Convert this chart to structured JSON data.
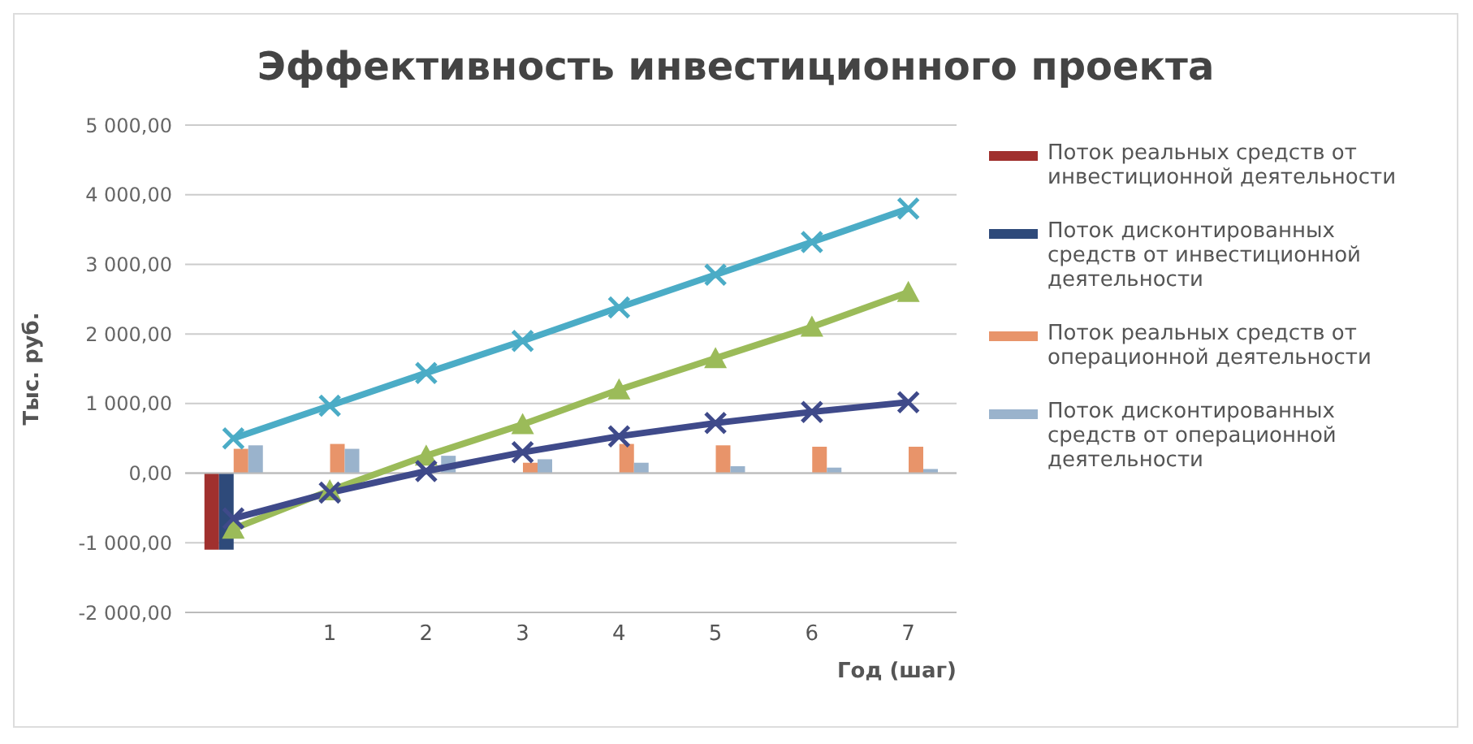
{
  "chart_data": {
    "type": "bar",
    "title": "Эффективность инвестиционного проекта",
    "xlabel": "Год (шаг)",
    "ylabel": "Тыс. руб.",
    "categories": [
      null,
      "1",
      "2",
      "3",
      "4",
      "5",
      "6",
      "7"
    ],
    "series": [
      {
        "name": "Поток реальных средств от инвестиционной деятельности",
        "color": "#a0302e",
        "values": [
          -1100,
          0,
          0,
          0,
          0,
          0,
          0,
          0
        ]
      },
      {
        "name": "Поток дисконтированных средств от инвестиционной деятельности",
        "color": "#2e4a7a",
        "values": [
          -1100,
          0,
          0,
          0,
          0,
          0,
          0,
          0
        ]
      },
      {
        "name": "Поток реальных средств от операционной деятельности",
        "color": "#e8946a",
        "values": [
          350,
          420,
          null,
          150,
          420,
          400,
          380,
          380
        ]
      },
      {
        "name": "Поток дисконтированных средств от операционной деятельности",
        "color": "#9ab3cc",
        "values": [
          400,
          350,
          250,
          200,
          150,
          100,
          80,
          60
        ]
      },
      {
        "type": "line",
        "color": "#4bacc6",
        "marker": "cross",
        "values": [
          500,
          970,
          1440,
          1900,
          2380,
          2850,
          3320,
          3800
        ]
      },
      {
        "type": "line",
        "color": "#9bbb59",
        "marker": "triangle",
        "values": [
          -800,
          -250,
          250,
          700,
          1200,
          1650,
          2100,
          2600
        ]
      },
      {
        "type": "line",
        "color": "#3f4a8a",
        "marker": "cross",
        "values": [
          -650,
          -280,
          30,
          300,
          530,
          720,
          880,
          1020
        ]
      }
    ],
    "ylim": [
      -2000,
      5000
    ],
    "yticks": [
      {
        "value": -2000,
        "label": "-2 000,00"
      },
      {
        "value": -1000,
        "label": "-1 000,00"
      },
      {
        "value": 0,
        "label": "0,00"
      },
      {
        "value": 1000,
        "label": "1 000,00"
      },
      {
        "value": 2000,
        "label": "2 000,00"
      },
      {
        "value": 3000,
        "label": "3 000,00"
      },
      {
        "value": 4000,
        "label": "4 000,00"
      },
      {
        "value": 5000,
        "label": "5 000,00"
      }
    ],
    "grid": "y",
    "legend": "right"
  }
}
